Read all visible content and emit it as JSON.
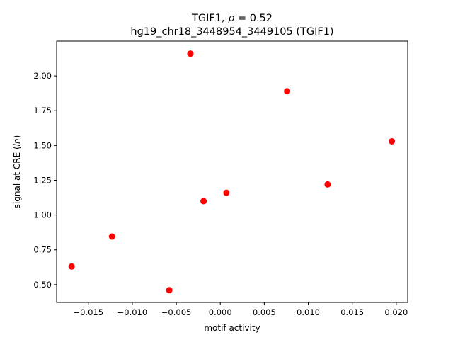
{
  "chart_data": {
    "type": "scatter",
    "title_line1_prefix": "TGIF1, ",
    "title_line1_rho": "ρ",
    "title_line1_suffix": " = 0.52",
    "title_line2": "hg19_chr18_3448954_3449105 (TGIF1)",
    "xlabel": "motif activity",
    "ylabel_prefix": "signal at CRE (",
    "ylabel_italic": "ln",
    "ylabel_suffix": ")",
    "xlim": [
      -0.0186,
      0.0213
    ],
    "ylim": [
      0.372,
      2.25
    ],
    "x_ticks": [
      -0.015,
      -0.01,
      -0.005,
      0.0,
      0.005,
      0.01,
      0.015,
      0.02
    ],
    "x_tick_labels": [
      "−0.015",
      "−0.010",
      "−0.005",
      "0.000",
      "0.005",
      "0.010",
      "0.015",
      "0.020"
    ],
    "y_ticks": [
      0.5,
      0.75,
      1.0,
      1.25,
      1.5,
      1.75,
      2.0
    ],
    "y_tick_labels": [
      "0.50",
      "0.75",
      "1.00",
      "1.25",
      "1.50",
      "1.75",
      "2.00"
    ],
    "point_color": "#ff0000",
    "points": [
      {
        "x": -0.0169,
        "y": 0.63
      },
      {
        "x": -0.0123,
        "y": 0.845
      },
      {
        "x": -0.0058,
        "y": 0.46
      },
      {
        "x": -0.0034,
        "y": 2.16
      },
      {
        "x": -0.0019,
        "y": 1.1
      },
      {
        "x": 0.0007,
        "y": 1.16
      },
      {
        "x": 0.0076,
        "y": 1.89
      },
      {
        "x": 0.0122,
        "y": 1.22
      },
      {
        "x": 0.0195,
        "y": 1.53
      }
    ]
  }
}
